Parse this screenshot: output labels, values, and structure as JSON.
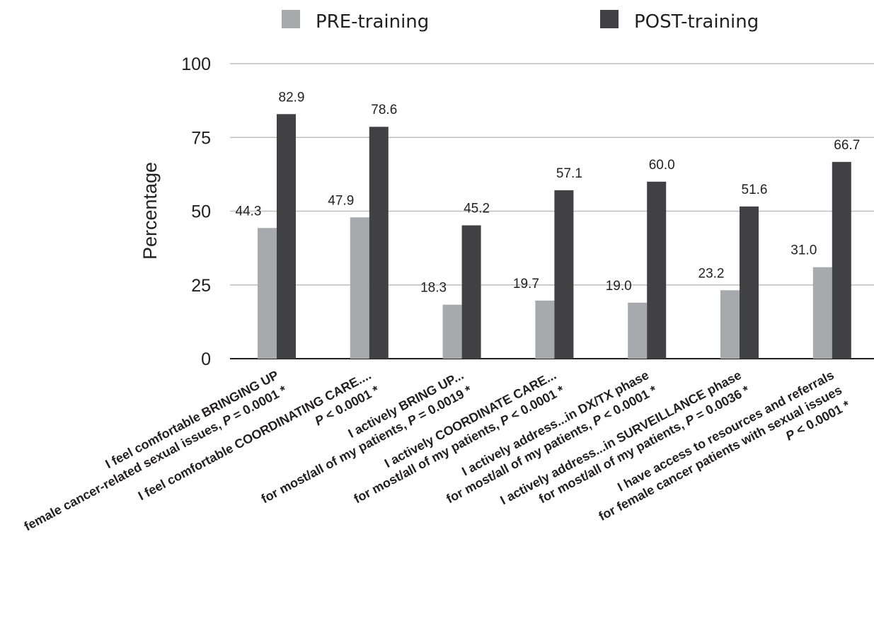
{
  "chart_data": {
    "type": "bar",
    "title": "",
    "xlabel": "",
    "ylabel": "Percentage",
    "ylim": [
      0,
      100
    ],
    "yticks": [
      0,
      25,
      50,
      75,
      100
    ],
    "grid": true,
    "legend_position": "top",
    "categories": [
      {
        "lines": [
          "I feel comfortable BRINGING UP",
          "female cancer-related sexual issues, "
        ],
        "p_letter": "P",
        "p_rest": " = 0.0001 *"
      },
      {
        "lines": [
          "I feel comfortable COORDINATING CARE....",
          ""
        ],
        "p_letter": "P",
        "p_rest": " < 0.0001 *"
      },
      {
        "lines": [
          "I actively BRING UP...",
          "for most/all of my patients, "
        ],
        "p_letter": "P",
        "p_rest": " = 0.0019 *"
      },
      {
        "lines": [
          "I actively COORDINATE CARE...",
          "for most/all of my patients, "
        ],
        "p_letter": "P",
        "p_rest": " < 0.0001 *"
      },
      {
        "lines": [
          "I actively address...in DX/TX phase",
          "for most/all of my patients, "
        ],
        "p_letter": "P",
        "p_rest": " < 0.0001 *"
      },
      {
        "lines": [
          "I actively address...in SURVEILLANCE phase",
          "for most/all of my patients, "
        ],
        "p_letter": "P",
        "p_rest": " = 0.0036 *"
      },
      {
        "lines": [
          "I have access to resources and referrals",
          "for female cancer patients with sexual issues",
          ""
        ],
        "p_letter": "P",
        "p_rest": " < 0.0001 *"
      }
    ],
    "series": [
      {
        "name": "PRE-training",
        "color": "#a7a9ac",
        "values": [
          44.3,
          47.9,
          18.3,
          19.7,
          19.0,
          23.2,
          31.0
        ],
        "labels": [
          "44.3",
          "47.9",
          "18.3",
          "19.7",
          "19.0",
          "23.2",
          "31.0"
        ]
      },
      {
        "name": "POST-training",
        "color": "#414042",
        "values": [
          82.9,
          78.6,
          45.2,
          57.1,
          60.0,
          51.6,
          66.7
        ],
        "labels": [
          "82.9",
          "78.6",
          "45.2",
          "57.1",
          "60.0",
          "51.6",
          "66.7"
        ]
      }
    ]
  }
}
